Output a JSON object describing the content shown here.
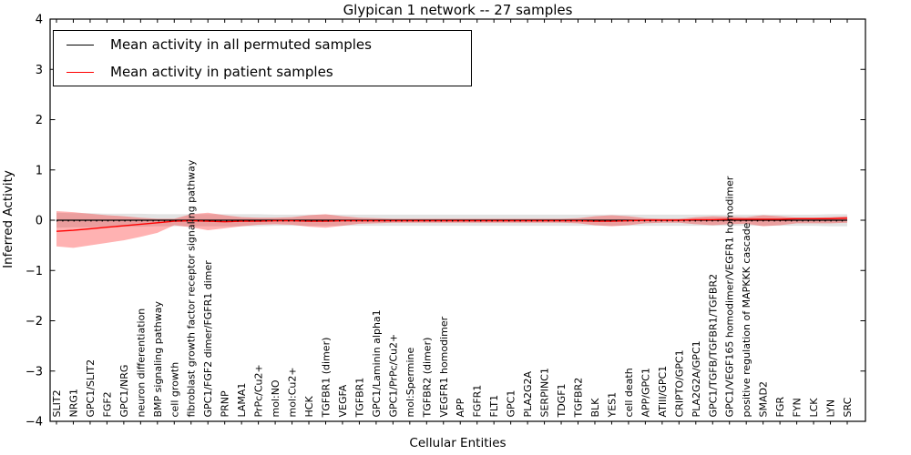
{
  "chart_data": {
    "type": "line",
    "title": "Glypican 1 network -- 27 samples",
    "xlabel": "Cellular Entities",
    "ylabel": "Inferred Activity",
    "ylim": [
      -4,
      4
    ],
    "yticks": [
      4,
      3,
      2,
      1,
      0,
      -1,
      -2,
      -3,
      -4
    ],
    "grid": false,
    "legend_position": "upper left",
    "categories": [
      "SLIT2",
      "NRG1",
      "GPC1/SLIT2",
      "FGF2",
      "GPC1/NRG",
      "neuron differentiation",
      "BMP signaling pathway",
      "cell growth",
      "fibroblast growth factor receptor signaling pathway",
      "GPC1/FGF2 dimer/FGFR1 dimer",
      "PRNP",
      "LAMA1",
      "PrPc/Cu2+",
      "mol:NO",
      "mol:Cu2+",
      "HCK",
      "TGFBR1 (dimer)",
      "VEGFA",
      "TGFBR1",
      "GPC1/Laminin alpha1",
      "GPC1/PrPc/Cu2+",
      "mol:Spermine",
      "TGFBR2 (dimer)",
      "VEGFR1 homodimer",
      "APP",
      "FGFR1",
      "FLT1",
      "GPC1",
      "PLA2G2A",
      "SERPINC1",
      "TDGF1",
      "TGFBR2",
      "BLK",
      "YES1",
      "cell death",
      "APP/GPC1",
      "ATIII/GPC1",
      "CRIPTO/GPC1",
      "PLA2G2A/GPC1",
      "GPC1/TGFB/TGFBR1/TGFBR2",
      "GPC1/VEGF165 homodimer/VEGFR1 homodimer",
      "positive regulation of MAPKKK cascade",
      "SMAD2",
      "FGR",
      "FYN",
      "LCK",
      "LYN",
      "SRC"
    ],
    "series": [
      {
        "name": "Mean activity in all permuted samples",
        "color": "#000000",
        "band_color": "#999999",
        "values": [
          0,
          0,
          0,
          0,
          0,
          0,
          0,
          0,
          0,
          0,
          0,
          0,
          0,
          0,
          0,
          0,
          0,
          0,
          0,
          0,
          0,
          0,
          0,
          0,
          0,
          0,
          0,
          0,
          0,
          0,
          0,
          0,
          0,
          0,
          0,
          0,
          0,
          0,
          0,
          0,
          0,
          0,
          0,
          0,
          0,
          0,
          0,
          0
        ],
        "band_upper": [
          0.15,
          0.14,
          0.14,
          0.13,
          0.13,
          0.13,
          0.12,
          0.12,
          0.12,
          0.12,
          0.12,
          0.12,
          0.12,
          0.11,
          0.11,
          0.11,
          0.11,
          0.11,
          0.11,
          0.11,
          0.11,
          0.11,
          0.11,
          0.11,
          0.11,
          0.11,
          0.11,
          0.11,
          0.11,
          0.11,
          0.11,
          0.11,
          0.11,
          0.11,
          0.11,
          0.11,
          0.11,
          0.11,
          0.11,
          0.11,
          0.11,
          0.11,
          0.11,
          0.11,
          0.11,
          0.11,
          0.12,
          0.12
        ],
        "band_lower": [
          -0.15,
          -0.14,
          -0.14,
          -0.13,
          -0.13,
          -0.13,
          -0.12,
          -0.12,
          -0.12,
          -0.12,
          -0.12,
          -0.12,
          -0.12,
          -0.11,
          -0.11,
          -0.11,
          -0.11,
          -0.11,
          -0.11,
          -0.11,
          -0.11,
          -0.11,
          -0.11,
          -0.11,
          -0.11,
          -0.11,
          -0.11,
          -0.11,
          -0.11,
          -0.11,
          -0.11,
          -0.11,
          -0.11,
          -0.11,
          -0.11,
          -0.11,
          -0.11,
          -0.11,
          -0.11,
          -0.11,
          -0.11,
          -0.11,
          -0.11,
          -0.11,
          -0.11,
          -0.11,
          -0.12,
          -0.12
        ]
      },
      {
        "name": "Mean activity in patient samples",
        "color": "#ff0000",
        "band_color": "#ff0000",
        "values": [
          -0.22,
          -0.2,
          -0.17,
          -0.14,
          -0.11,
          -0.08,
          -0.05,
          -0.02,
          -0.01,
          -0.02,
          -0.03,
          -0.02,
          -0.02,
          -0.01,
          -0.01,
          -0.02,
          -0.02,
          -0.01,
          -0.01,
          -0.01,
          -0.01,
          -0.01,
          -0.01,
          -0.01,
          -0.01,
          -0.01,
          -0.01,
          -0.01,
          -0.01,
          -0.01,
          -0.01,
          -0.01,
          -0.02,
          -0.02,
          -0.01,
          0,
          0,
          0,
          0.01,
          0.01,
          0.02,
          0.02,
          0.02,
          0.02,
          0.03,
          0.03,
          0.03,
          0.04
        ],
        "band_upper": [
          0.18,
          0.16,
          0.13,
          0.1,
          0.08,
          0.05,
          0.03,
          0.03,
          0.12,
          0.15,
          0.1,
          0.06,
          0.05,
          0.05,
          0.06,
          0.1,
          0.12,
          0.08,
          0.05,
          0.04,
          0.03,
          0.03,
          0.03,
          0.03,
          0.03,
          0.03,
          0.03,
          0.03,
          0.03,
          0.03,
          0.03,
          0.04,
          0.08,
          0.1,
          0.08,
          0.04,
          0.03,
          0.03,
          0.06,
          0.08,
          0.07,
          0.06,
          0.1,
          0.08,
          0.05,
          0.05,
          0.06,
          0.08
        ],
        "band_lower": [
          -0.52,
          -0.55,
          -0.5,
          -0.45,
          -0.4,
          -0.33,
          -0.25,
          -0.1,
          -0.14,
          -0.2,
          -0.16,
          -0.12,
          -0.09,
          -0.08,
          -0.09,
          -0.13,
          -0.15,
          -0.11,
          -0.07,
          -0.06,
          -0.05,
          -0.05,
          -0.05,
          -0.05,
          -0.05,
          -0.05,
          -0.05,
          -0.05,
          -0.05,
          -0.05,
          -0.05,
          -0.06,
          -0.1,
          -0.12,
          -0.1,
          -0.06,
          -0.05,
          -0.05,
          -0.08,
          -0.1,
          -0.08,
          -0.07,
          -0.12,
          -0.1,
          -0.06,
          -0.06,
          -0.06,
          -0.05
        ]
      }
    ]
  }
}
